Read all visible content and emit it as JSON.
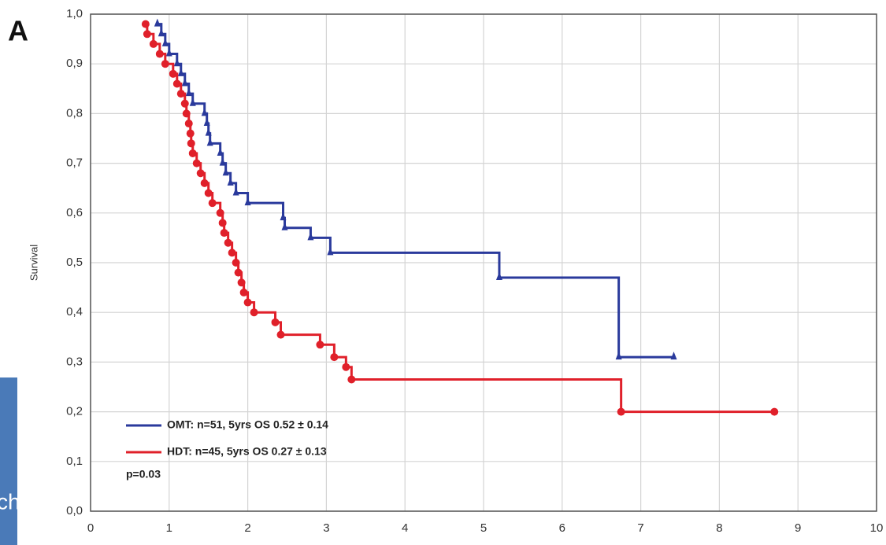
{
  "chart_data": {
    "type": "step",
    "panel_label": "A",
    "y_label": "Survival",
    "annotation": "p=0.03",
    "overlay_text": "ch",
    "xlim": [
      0,
      10
    ],
    "xticks": [
      0,
      1,
      2,
      3,
      4,
      5,
      6,
      7,
      8,
      9,
      10
    ],
    "ylim": [
      0,
      1
    ],
    "yticks": [
      {
        "value": 0,
        "label": "0,0"
      },
      {
        "value": 0.1,
        "label": "0,1"
      },
      {
        "value": 0.2,
        "label": "0,2"
      },
      {
        "value": 0.3,
        "label": "0,3"
      },
      {
        "value": 0.4,
        "label": "0,4"
      },
      {
        "value": 0.5,
        "label": "0,5"
      },
      {
        "value": 0.6,
        "label": "0,6"
      },
      {
        "value": 0.7,
        "label": "0,7"
      },
      {
        "value": 0.8,
        "label": "0,8"
      },
      {
        "value": 0.9,
        "label": "0,9"
      },
      {
        "value": 1,
        "label": "1,0"
      }
    ],
    "grid": true,
    "series": [
      {
        "name": "OMT: n=51, 5yrs OS 0.52 ± 0.14",
        "color": "#2a3a9c",
        "marker": "triangle",
        "x": [
          0.85,
          0.9,
          0.95,
          1.0,
          1.1,
          1.15,
          1.2,
          1.25,
          1.3,
          1.45,
          1.48,
          1.5,
          1.52,
          1.65,
          1.68,
          1.72,
          1.78,
          1.85,
          2.0,
          2.45,
          2.47,
          2.8,
          3.05,
          5.2,
          6.72,
          7.42
        ],
        "values": [
          0.98,
          0.96,
          0.94,
          0.92,
          0.9,
          0.88,
          0.86,
          0.84,
          0.82,
          0.8,
          0.78,
          0.76,
          0.74,
          0.72,
          0.7,
          0.68,
          0.66,
          0.64,
          0.62,
          0.59,
          0.57,
          0.55,
          0.52,
          0.47,
          0.31,
          0.31
        ]
      },
      {
        "name": "HDT: n=45, 5yrs OS 0.27 ± 0.13",
        "color": "#e0202a",
        "marker": "circle",
        "x": [
          0.7,
          0.72,
          0.8,
          0.88,
          0.95,
          1.05,
          1.1,
          1.15,
          1.2,
          1.22,
          1.25,
          1.27,
          1.28,
          1.3,
          1.35,
          1.4,
          1.45,
          1.5,
          1.55,
          1.65,
          1.68,
          1.7,
          1.75,
          1.8,
          1.85,
          1.88,
          1.92,
          1.95,
          2.0,
          2.08,
          2.35,
          2.42,
          2.92,
          3.1,
          3.25,
          3.32,
          6.75,
          8.7
        ],
        "values": [
          0.98,
          0.96,
          0.94,
          0.92,
          0.9,
          0.88,
          0.86,
          0.84,
          0.82,
          0.8,
          0.78,
          0.76,
          0.74,
          0.72,
          0.7,
          0.68,
          0.66,
          0.64,
          0.62,
          0.6,
          0.58,
          0.56,
          0.54,
          0.52,
          0.5,
          0.48,
          0.46,
          0.44,
          0.42,
          0.4,
          0.38,
          0.355,
          0.335,
          0.31,
          0.29,
          0.265,
          0.2,
          0.2
        ]
      }
    ]
  }
}
